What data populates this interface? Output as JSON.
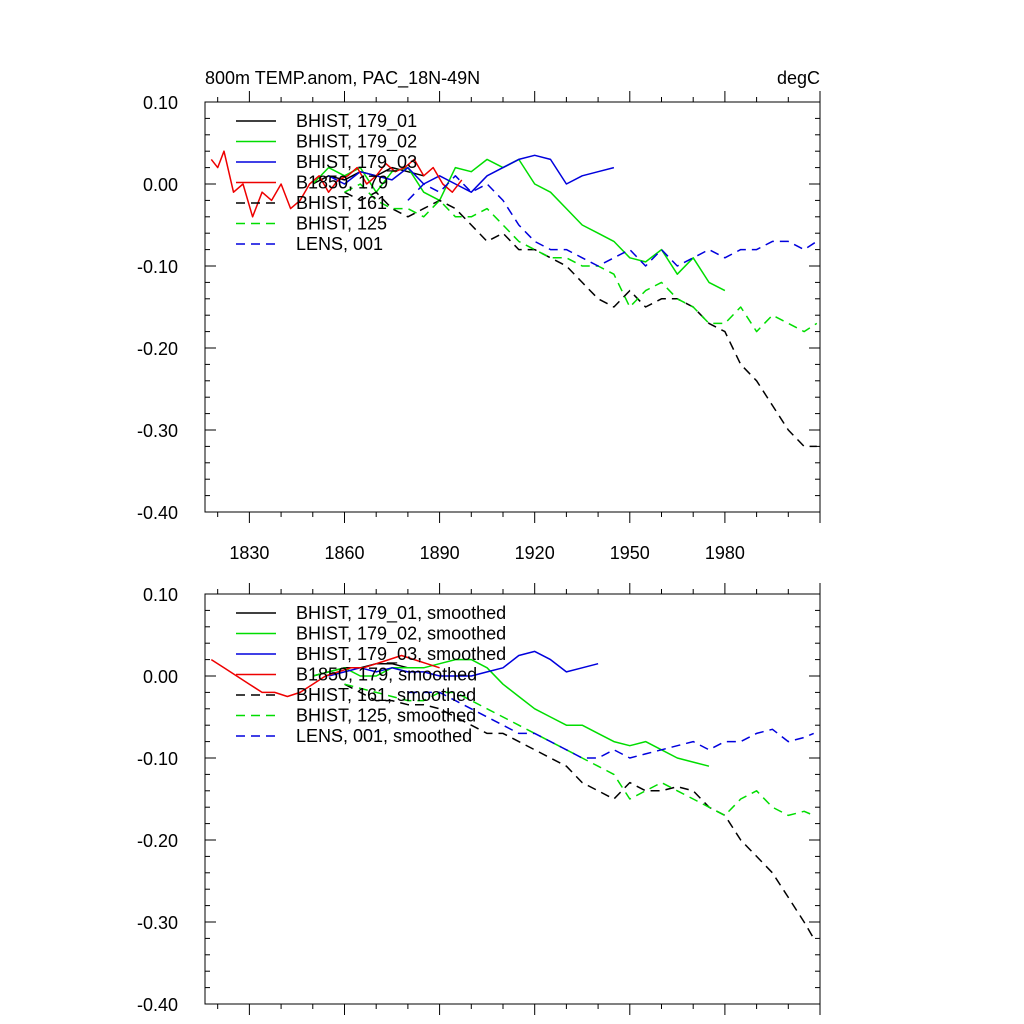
{
  "header": {
    "title": "800m TEMP.anom, PAC_18N-49N",
    "units": "degC"
  },
  "chart_data": [
    {
      "type": "line",
      "title": "800m TEMP.anom, PAC_18N-49N",
      "units": "degC",
      "xlim": [
        1816,
        2010
      ],
      "ylim": [
        -0.4,
        0.1
      ],
      "xticks": [
        "1830",
        "1860",
        "1890",
        "1920",
        "1950",
        "1980"
      ],
      "yticks": [
        "0.10",
        "0.00",
        "-0.10",
        "-0.20",
        "-0.30",
        "-0.40"
      ],
      "legend_position": "top-left",
      "series": [
        {
          "name": "BHIST, 179_01",
          "color": "#000000",
          "dash": "solid",
          "x": [
            1850,
            1855,
            1860,
            1865,
            1870,
            1875,
            1880,
            1885
          ],
          "y": [
            0.0,
            0.01,
            0.005,
            0.015,
            0.01,
            0.02,
            0.015,
            0.01
          ]
        },
        {
          "name": "BHIST, 179_02",
          "color": "#00dd00",
          "dash": "solid",
          "x": [
            1850,
            1855,
            1860,
            1865,
            1870,
            1875,
            1880,
            1885,
            1890,
            1895,
            1900,
            1905,
            1910,
            1915,
            1920,
            1925,
            1930,
            1935,
            1940,
            1945,
            1950,
            1955,
            1960,
            1965,
            1970,
            1975,
            1980
          ],
          "y": [
            0.0,
            0.02,
            0.01,
            0.02,
            -0.01,
            0.015,
            0.02,
            -0.01,
            -0.02,
            0.02,
            0.015,
            0.03,
            0.02,
            0.03,
            0.0,
            -0.01,
            -0.03,
            -0.05,
            -0.06,
            -0.07,
            -0.09,
            -0.095,
            -0.08,
            -0.11,
            -0.09,
            -0.12,
            -0.13
          ]
        },
        {
          "name": "BHIST, 179_03",
          "color": "#0000dd",
          "dash": "solid",
          "x": [
            1855,
            1860,
            1865,
            1870,
            1875,
            1880,
            1885,
            1890,
            1895,
            1900,
            1905,
            1910,
            1915,
            1920,
            1925,
            1930,
            1935,
            1940,
            1945
          ],
          "y": [
            0.01,
            0.0,
            0.015,
            0.01,
            0.005,
            0.02,
            0.0,
            0.01,
            0.0,
            -0.01,
            0.01,
            0.02,
            0.03,
            0.035,
            0.03,
            0.0,
            0.01,
            0.015,
            0.02
          ]
        },
        {
          "name": "B1850, 179",
          "color": "#ee0000",
          "dash": "solid",
          "x": [
            1818,
            1820,
            1822,
            1825,
            1828,
            1831,
            1834,
            1837,
            1840,
            1843,
            1846,
            1849,
            1852,
            1855,
            1858,
            1861,
            1864,
            1867,
            1870,
            1873,
            1876,
            1879,
            1882,
            1885,
            1888,
            1891,
            1894,
            1897
          ],
          "y": [
            0.03,
            0.02,
            0.04,
            -0.01,
            0.0,
            -0.04,
            -0.01,
            -0.02,
            0.0,
            -0.03,
            -0.02,
            0.0,
            0.01,
            -0.01,
            0.005,
            0.01,
            0.02,
            0.0,
            0.01,
            0.025,
            0.015,
            0.02,
            0.03,
            0.01,
            0.02,
            0.0,
            -0.01,
            0.005
          ]
        },
        {
          "name": "BHIST, 161",
          "color": "#000000",
          "dash": "dashed",
          "x": [
            1860,
            1865,
            1870,
            1875,
            1880,
            1885,
            1890,
            1895,
            1900,
            1905,
            1910,
            1915,
            1920,
            1925,
            1930,
            1935,
            1940,
            1945,
            1950,
            1955,
            1960,
            1965,
            1970,
            1975,
            1980,
            1985,
            1990,
            1995,
            2000,
            2005,
            2009
          ],
          "y": [
            -0.01,
            -0.02,
            -0.01,
            -0.03,
            -0.04,
            -0.03,
            -0.02,
            -0.03,
            -0.05,
            -0.07,
            -0.06,
            -0.08,
            -0.08,
            -0.09,
            -0.1,
            -0.12,
            -0.14,
            -0.15,
            -0.13,
            -0.15,
            -0.14,
            -0.14,
            -0.15,
            -0.17,
            -0.18,
            -0.22,
            -0.24,
            -0.27,
            -0.3,
            -0.32,
            -0.32
          ]
        },
        {
          "name": "BHIST, 125",
          "color": "#00dd00",
          "dash": "dashed",
          "x": [
            1860,
            1865,
            1870,
            1875,
            1880,
            1885,
            1890,
            1895,
            1900,
            1905,
            1910,
            1915,
            1920,
            1925,
            1930,
            1935,
            1940,
            1945,
            1950,
            1955,
            1960,
            1965,
            1970,
            1975,
            1980,
            1985,
            1990,
            1995,
            2000,
            2005,
            2009
          ],
          "y": [
            -0.01,
            0.0,
            -0.02,
            -0.03,
            -0.03,
            -0.04,
            -0.02,
            -0.04,
            -0.04,
            -0.03,
            -0.05,
            -0.07,
            -0.08,
            -0.09,
            -0.09,
            -0.1,
            -0.1,
            -0.11,
            -0.15,
            -0.13,
            -0.12,
            -0.14,
            -0.15,
            -0.17,
            -0.17,
            -0.15,
            -0.18,
            -0.16,
            -0.17,
            -0.18,
            -0.17
          ]
        },
        {
          "name": "LENS, 001",
          "color": "#0000dd",
          "dash": "dashed",
          "x": [
            1880,
            1885,
            1890,
            1895,
            1900,
            1905,
            1910,
            1915,
            1920,
            1925,
            1930,
            1935,
            1940,
            1945,
            1950,
            1955,
            1960,
            1965,
            1970,
            1975,
            1980,
            1985,
            1990,
            1995,
            2000,
            2005,
            2009
          ],
          "y": [
            -0.02,
            0.0,
            -0.01,
            0.01,
            -0.01,
            0.0,
            -0.02,
            -0.05,
            -0.07,
            -0.08,
            -0.08,
            -0.09,
            -0.1,
            -0.09,
            -0.08,
            -0.1,
            -0.08,
            -0.1,
            -0.09,
            -0.08,
            -0.09,
            -0.08,
            -0.08,
            -0.07,
            -0.07,
            -0.08,
            -0.07
          ]
        }
      ]
    },
    {
      "type": "line",
      "xlim": [
        1816,
        2010
      ],
      "ylim": [
        -0.4,
        0.1
      ],
      "xticks": [],
      "yticks": [
        "0.10",
        "0.00",
        "-0.10",
        "-0.20",
        "-0.30",
        "-0.40"
      ],
      "legend_position": "top-left",
      "series": [
        {
          "name": "BHIST, 179_01, smoothed",
          "color": "#000000",
          "dash": "solid",
          "x": [
            1850,
            1855,
            1860,
            1865,
            1870,
            1875,
            1880
          ],
          "y": [
            0.0,
            0.005,
            0.01,
            0.01,
            0.015,
            0.015,
            0.01
          ]
        },
        {
          "name": "BHIST, 179_02, smoothed",
          "color": "#00dd00",
          "dash": "solid",
          "x": [
            1850,
            1855,
            1860,
            1865,
            1870,
            1875,
            1880,
            1885,
            1890,
            1895,
            1900,
            1905,
            1910,
            1915,
            1920,
            1925,
            1930,
            1935,
            1940,
            1945,
            1950,
            1955,
            1960,
            1965,
            1970,
            1975
          ],
          "y": [
            0.0,
            0.005,
            0.01,
            0.0,
            0.0,
            0.01,
            0.01,
            0.01,
            0.015,
            0.02,
            0.02,
            0.01,
            -0.01,
            -0.025,
            -0.04,
            -0.05,
            -0.06,
            -0.06,
            -0.07,
            -0.08,
            -0.085,
            -0.08,
            -0.09,
            -0.1,
            -0.105,
            -0.11
          ]
        },
        {
          "name": "BHIST, 179_03, smoothed",
          "color": "#0000dd",
          "dash": "solid",
          "x": [
            1855,
            1860,
            1865,
            1870,
            1875,
            1880,
            1885,
            1890,
            1895,
            1900,
            1905,
            1910,
            1915,
            1920,
            1925,
            1930,
            1935,
            1940
          ],
          "y": [
            0.0,
            0.005,
            0.01,
            0.005,
            0.01,
            0.005,
            0.005,
            0.0,
            0.0,
            0.0,
            0.005,
            0.01,
            0.025,
            0.03,
            0.02,
            0.005,
            0.01,
            0.015
          ]
        },
        {
          "name": "B1850, 179, smoothed",
          "color": "#ee0000",
          "dash": "solid",
          "x": [
            1818,
            1822,
            1826,
            1830,
            1834,
            1838,
            1842,
            1846,
            1850,
            1854,
            1858,
            1862,
            1866,
            1870,
            1874,
            1878,
            1882,
            1886,
            1890
          ],
          "y": [
            0.02,
            0.01,
            0.0,
            -0.01,
            -0.02,
            -0.02,
            -0.025,
            -0.02,
            -0.01,
            0.0,
            0.005,
            0.01,
            0.01,
            0.015,
            0.02,
            0.025,
            0.02,
            0.015,
            0.01
          ]
        },
        {
          "name": "BHIST, 161, smoothed",
          "color": "#000000",
          "dash": "dashed",
          "x": [
            1860,
            1865,
            1870,
            1875,
            1880,
            1885,
            1890,
            1895,
            1900,
            1905,
            1910,
            1915,
            1920,
            1925,
            1930,
            1935,
            1940,
            1945,
            1950,
            1955,
            1960,
            1965,
            1970,
            1975,
            1980,
            1985,
            1990,
            1995,
            2000,
            2005,
            2008
          ],
          "y": [
            -0.01,
            -0.02,
            -0.03,
            -0.03,
            -0.035,
            -0.035,
            -0.04,
            -0.05,
            -0.06,
            -0.07,
            -0.07,
            -0.08,
            -0.09,
            -0.1,
            -0.11,
            -0.13,
            -0.14,
            -0.15,
            -0.13,
            -0.14,
            -0.14,
            -0.135,
            -0.14,
            -0.16,
            -0.17,
            -0.2,
            -0.22,
            -0.24,
            -0.27,
            -0.3,
            -0.32
          ]
        },
        {
          "name": "BHIST, 125, smoothed",
          "color": "#00dd00",
          "dash": "dashed",
          "x": [
            1860,
            1865,
            1870,
            1875,
            1880,
            1885,
            1890,
            1895,
            1900,
            1905,
            1910,
            1915,
            1920,
            1925,
            1930,
            1935,
            1940,
            1945,
            1950,
            1955,
            1960,
            1965,
            1970,
            1975,
            1980,
            1985,
            1990,
            1995,
            2000,
            2005,
            2008
          ],
          "y": [
            -0.01,
            -0.015,
            -0.02,
            -0.025,
            -0.03,
            -0.03,
            -0.02,
            -0.02,
            -0.03,
            -0.04,
            -0.05,
            -0.06,
            -0.07,
            -0.08,
            -0.09,
            -0.1,
            -0.11,
            -0.12,
            -0.15,
            -0.14,
            -0.13,
            -0.14,
            -0.15,
            -0.16,
            -0.17,
            -0.15,
            -0.14,
            -0.16,
            -0.17,
            -0.165,
            -0.17
          ]
        },
        {
          "name": "LENS, 001, smoothed",
          "color": "#0000dd",
          "dash": "dashed",
          "x": [
            1880,
            1885,
            1890,
            1895,
            1900,
            1905,
            1910,
            1915,
            1920,
            1925,
            1930,
            1935,
            1940,
            1945,
            1950,
            1955,
            1960,
            1965,
            1970,
            1975,
            1980,
            1985,
            1990,
            1995,
            2000,
            2005,
            2008
          ],
          "y": [
            -0.02,
            -0.02,
            -0.02,
            -0.03,
            -0.04,
            -0.05,
            -0.06,
            -0.07,
            -0.07,
            -0.08,
            -0.09,
            -0.1,
            -0.1,
            -0.09,
            -0.1,
            -0.095,
            -0.09,
            -0.085,
            -0.08,
            -0.09,
            -0.08,
            -0.08,
            -0.07,
            -0.065,
            -0.08,
            -0.075,
            -0.07
          ]
        }
      ]
    }
  ]
}
